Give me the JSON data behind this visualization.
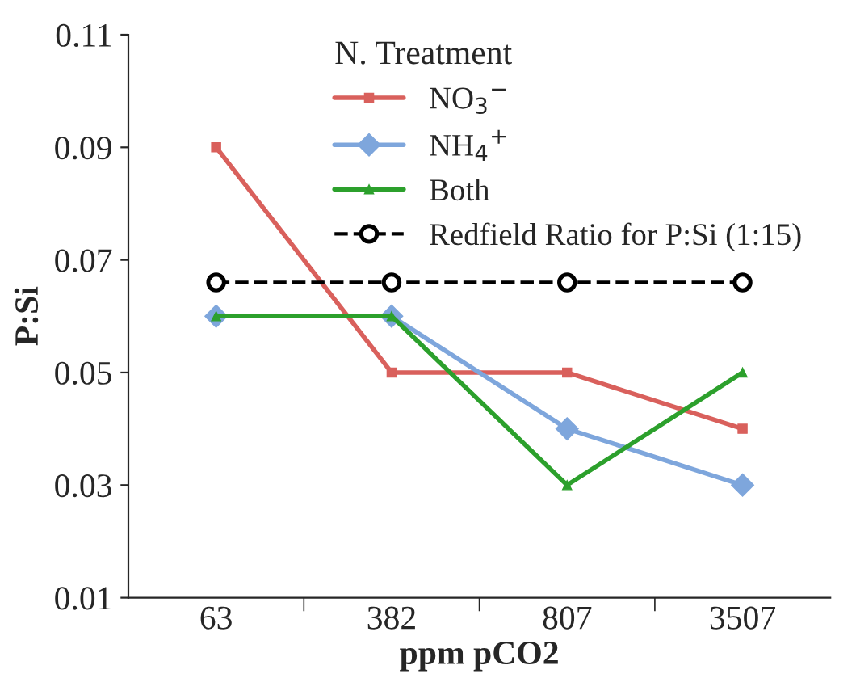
{
  "chart_data": {
    "type": "line",
    "xlabel": "ppm pCO2",
    "ylabel": "P:Si",
    "legend_title": "N. Treatment",
    "categories": [
      "63",
      "382",
      "807",
      "3507"
    ],
    "series": [
      {
        "name": "NO$_{3}$$^{−}$",
        "color": "#d9605c",
        "marker": "square",
        "line_style": "solid",
        "values": [
          0.09,
          0.05,
          0.05,
          0.04
        ]
      },
      {
        "name": "NH$_{4}$$^{+}$",
        "color": "#7ea6dc",
        "marker": "diamond",
        "line_style": "solid",
        "values": [
          0.06,
          0.06,
          0.04,
          0.03
        ]
      },
      {
        "name": "Both",
        "color": "#2ca02c",
        "marker": "triangle",
        "line_style": "solid",
        "values": [
          0.06,
          0.06,
          0.03,
          0.05
        ]
      },
      {
        "name": "Redfield Ratio for P:Si (1:15)",
        "color": "#000000",
        "marker": "circle",
        "line_style": "dashed",
        "values": [
          0.066,
          0.066,
          0.066,
          0.066
        ]
      }
    ],
    "ylim": [
      0.01,
      0.11
    ],
    "yticks": [
      0.01,
      0.03,
      0.05,
      0.07,
      0.09,
      0.11
    ],
    "grid": false,
    "legend": "top right"
  }
}
